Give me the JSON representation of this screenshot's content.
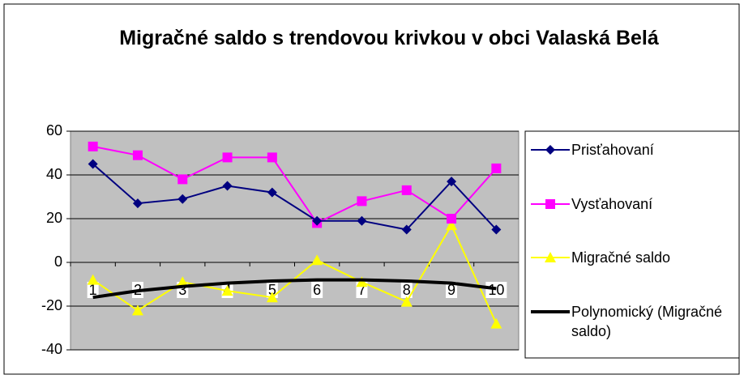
{
  "chart_data": {
    "type": "line",
    "title": "Migračné saldo s trendovou krivkou v obci Valaská Belá",
    "categories": [
      "1",
      "2",
      "3",
      "4",
      "5",
      "6",
      "7",
      "8",
      "9",
      "10"
    ],
    "ylim": [
      -40,
      60
    ],
    "yticks": [
      -40,
      -20,
      0,
      20,
      40,
      60
    ],
    "grid": true,
    "legend": "right",
    "series": [
      {
        "name": "Prisťahovaní",
        "color": "#000080",
        "marker": "diamond",
        "values": [
          45,
          27,
          29,
          35,
          32,
          19,
          19,
          15,
          37,
          15
        ]
      },
      {
        "name": "Vysťahovaní",
        "color": "#ff00ff",
        "marker": "square",
        "values": [
          53,
          49,
          38,
          48,
          48,
          18,
          28,
          33,
          20,
          43
        ]
      },
      {
        "name": "Migračné saldo",
        "color": "#ffff00",
        "marker": "triangle",
        "values": [
          -8,
          -22,
          -9,
          -13,
          -16,
          1,
          -9,
          -18,
          17,
          -28
        ]
      },
      {
        "name": "Polynomický (Migračné saldo)",
        "color": "#000000",
        "marker": "none",
        "values": [
          -16,
          -13,
          -11,
          -9.5,
          -8.5,
          -8,
          -8,
          -8.5,
          -9.5,
          -12
        ]
      }
    ]
  }
}
